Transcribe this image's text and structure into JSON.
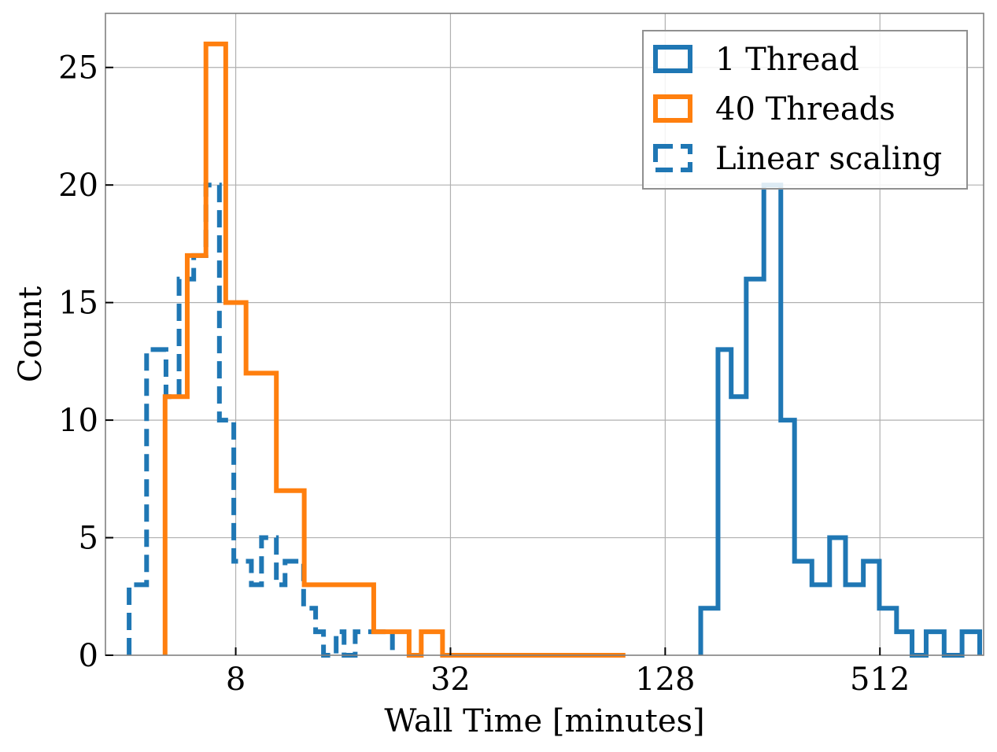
{
  "chart_data": {
    "type": "histogram",
    "xscale": "log2",
    "xlabel": "Wall Time [minutes]",
    "ylabel": "Count",
    "xlim": [
      3.45,
      1000
    ],
    "ylim": [
      0,
      27.3
    ],
    "xticks": [
      8,
      32,
      128,
      512
    ],
    "xtick_labels": [
      "8",
      "32",
      "128",
      "512"
    ],
    "yticks": [
      0,
      5,
      10,
      15,
      20,
      25
    ],
    "ytick_labels": [
      "0",
      "5",
      "10",
      "15",
      "20",
      "25"
    ],
    "grid": true,
    "legend_position": "upper right",
    "series": [
      {
        "name": "1 Thread",
        "color": "#1f77b4",
        "linestyle": "solid",
        "bin_edges": [
          161,
          180,
          196,
          216,
          242,
          270,
          295,
          330,
          370,
          410,
          460,
          510,
          570,
          630,
          690,
          775,
          870,
          975
        ],
        "counts": [
          2,
          13,
          11,
          16,
          20,
          10,
          4,
          3,
          5,
          3,
          4,
          2,
          1,
          0,
          1,
          0,
          1
        ]
      },
      {
        "name": "40 Threads",
        "color": "#ff7f0e",
        "linestyle": "solid",
        "bin_edges": [
          5.07,
          5.85,
          6.6,
          7.5,
          8.55,
          10.4,
          12.45,
          16.2,
          19.5,
          24.5,
          26.5,
          30.4,
          35,
          99
        ],
        "counts": [
          11,
          17,
          26,
          15,
          12,
          7,
          3,
          3,
          1,
          0,
          1,
          0,
          0
        ]
      },
      {
        "name": "Linear scaling",
        "color": "#1f77b4",
        "linestyle": "dashed",
        "bin_edges": [
          4.02,
          4.5,
          5.1,
          5.55,
          6.1,
          6.6,
          7.2,
          7.9,
          8.25,
          8.85,
          9.45,
          10.4,
          11,
          12.4,
          13.4,
          14.1,
          15.3,
          16.1,
          17.3,
          20.5,
          22
        ],
        "counts": [
          3,
          13,
          11,
          16,
          17,
          20,
          10,
          4,
          4,
          3,
          5,
          3,
          4,
          2,
          1,
          0,
          1,
          0,
          1,
          1
        ]
      }
    ]
  }
}
